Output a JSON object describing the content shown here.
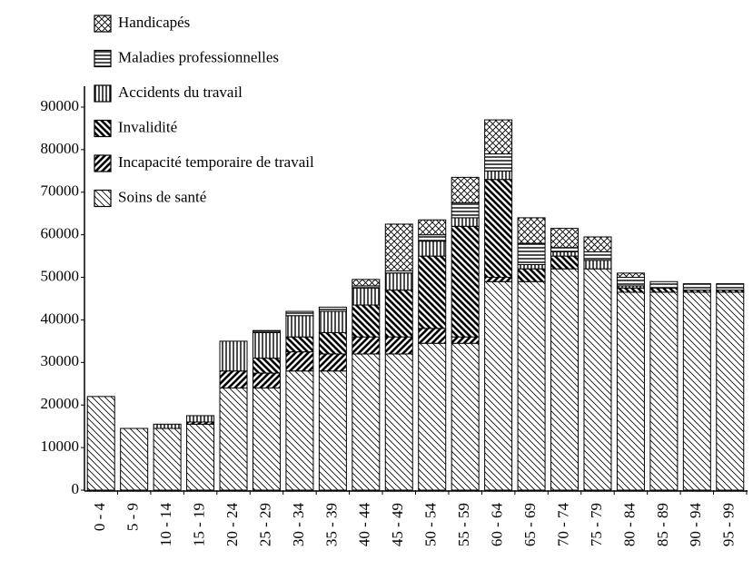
{
  "chart_data": {
    "type": "stacked-bar",
    "categories": [
      "0 - 4",
      "5 - 9",
      "10 - 14",
      "15 - 19",
      "20 - 24",
      "25 - 29",
      "30 - 34",
      "35 - 39",
      "40 - 44",
      "45 - 49",
      "50 - 54",
      "55 - 59",
      "60 - 64",
      "65 - 69",
      "70 - 74",
      "75 - 79",
      "80 - 84",
      "85 - 89",
      "90 - 94",
      "95 - 99"
    ],
    "series": [
      {
        "name": "Soins de santé",
        "color": "#000000",
        "pattern": "diag-thin",
        "values": [
          22000,
          14500,
          14500,
          15500,
          24000,
          24000,
          28000,
          28000,
          32000,
          32000,
          34500,
          34500,
          49000,
          49000,
          52000,
          52000,
          46500,
          46500,
          46500,
          46500
        ]
      },
      {
        "name": "Incapacité temporaire de travail",
        "color": "#000000",
        "pattern": "slash-thick",
        "values": [
          0,
          0,
          0,
          500,
          4000,
          3500,
          4500,
          4000,
          4000,
          4000,
          3500,
          1500,
          1000,
          0,
          0,
          0,
          0,
          0,
          0,
          0
        ]
      },
      {
        "name": "Invalidité",
        "color": "#000000",
        "pattern": "backslash-thick",
        "values": [
          0,
          0,
          0,
          0,
          0,
          3500,
          3500,
          5000,
          7500,
          11000,
          17000,
          26000,
          23000,
          3000,
          3000,
          0,
          1000,
          1000,
          500,
          500
        ]
      },
      {
        "name": "Accidents du travail",
        "color": "#000000",
        "pattern": "vertical",
        "values": [
          0,
          0,
          1000,
          1500,
          7000,
          6000,
          5000,
          5000,
          4000,
          4000,
          3500,
          2000,
          2000,
          1000,
          1000,
          2000,
          500,
          0,
          0,
          0
        ]
      },
      {
        "name": "Maladies professionnelles",
        "color": "#000000",
        "pattern": "horizontal",
        "values": [
          0,
          0,
          0,
          0,
          0,
          500,
          1000,
          1000,
          500,
          500,
          1500,
          3500,
          4000,
          5000,
          1000,
          2000,
          2000,
          1500,
          1500,
          1500
        ]
      },
      {
        "name": "Handicapés",
        "color": "#000000",
        "pattern": "crosshatch",
        "values": [
          0,
          0,
          0,
          0,
          0,
          0,
          0,
          0,
          1500,
          11000,
          3500,
          6000,
          8000,
          6000,
          4500,
          3500,
          1000,
          0,
          0,
          0
        ]
      }
    ],
    "ylim": [
      0,
      90000
    ],
    "yticks": [
      0,
      10000,
      20000,
      30000,
      40000,
      50000,
      60000,
      70000,
      80000,
      90000
    ],
    "legend": "upper-left"
  }
}
